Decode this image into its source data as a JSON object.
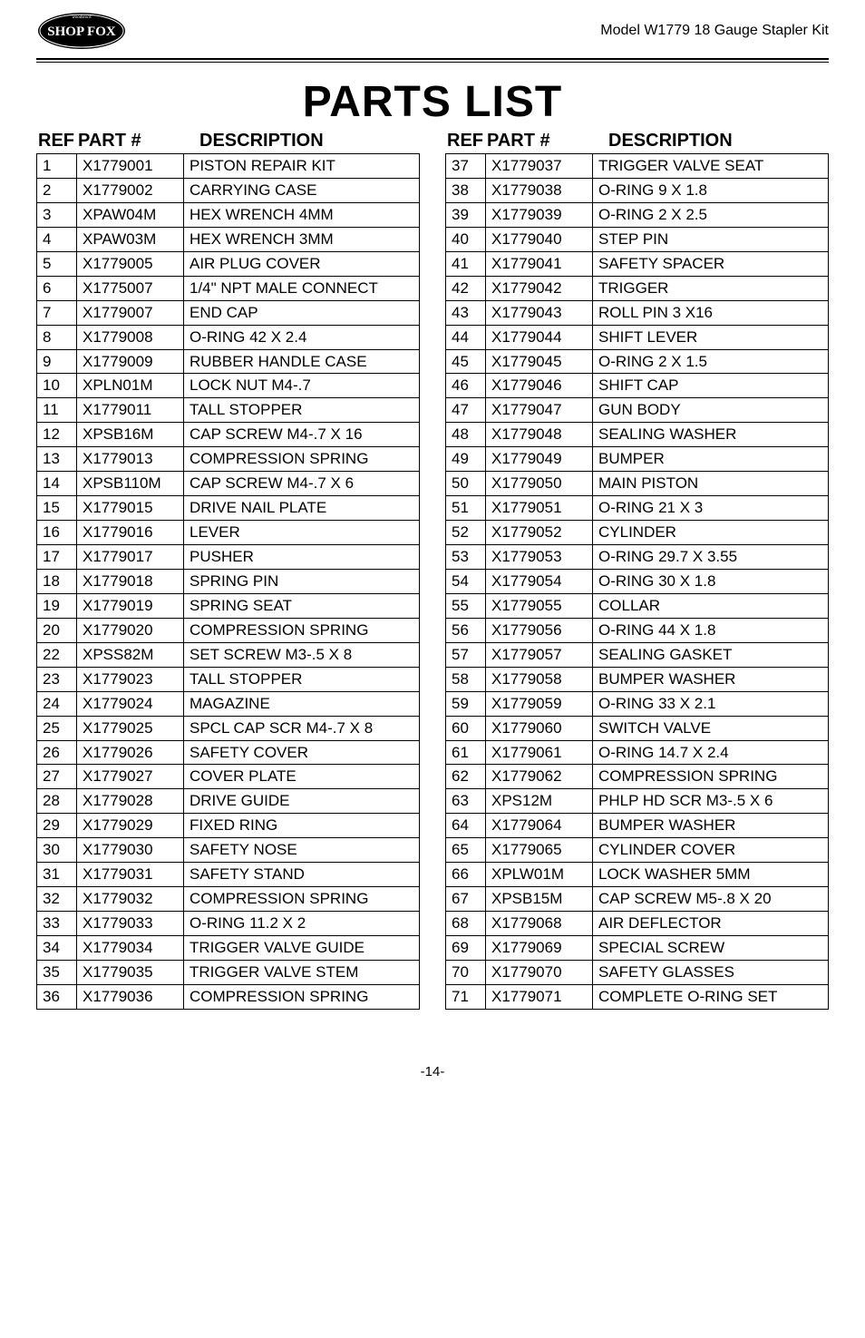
{
  "header": {
    "model_line": "Model W1779 18 Gauge Stapler Kit",
    "logo_text_top": "SHOP FOX"
  },
  "title": "PARTS LIST",
  "col_headers": {
    "ref": "REF",
    "part": "PART #",
    "desc": "DESCRIPTION"
  },
  "left_rows": [
    {
      "ref": "1",
      "part": "X1779001",
      "desc": "PISTON REPAIR KIT"
    },
    {
      "ref": "2",
      "part": "X1779002",
      "desc": "CARRYING CASE"
    },
    {
      "ref": "3",
      "part": "XPAW04M",
      "desc": "HEX WRENCH 4MM"
    },
    {
      "ref": "4",
      "part": "XPAW03M",
      "desc": "HEX WRENCH 3MM"
    },
    {
      "ref": "5",
      "part": "X1779005",
      "desc": "AIR PLUG COVER"
    },
    {
      "ref": "6",
      "part": "X1775007",
      "desc": "1/4\" NPT MALE CONNECT"
    },
    {
      "ref": "7",
      "part": "X1779007",
      "desc": "END CAP"
    },
    {
      "ref": "8",
      "part": "X1779008",
      "desc": "O-RING 42 X 2.4"
    },
    {
      "ref": "9",
      "part": "X1779009",
      "desc": "RUBBER HANDLE CASE"
    },
    {
      "ref": "10",
      "part": "XPLN01M",
      "desc": "LOCK NUT M4-.7"
    },
    {
      "ref": "11",
      "part": "X1779011",
      "desc": "TALL STOPPER"
    },
    {
      "ref": "12",
      "part": "XPSB16M",
      "desc": "CAP SCREW M4-.7 X 16"
    },
    {
      "ref": "13",
      "part": "X1779013",
      "desc": "COMPRESSION SPRING"
    },
    {
      "ref": "14",
      "part": "XPSB110M",
      "desc": "CAP SCREW M4-.7 X 6"
    },
    {
      "ref": "15",
      "part": "X1779015",
      "desc": "DRIVE NAIL PLATE"
    },
    {
      "ref": "16",
      "part": "X1779016",
      "desc": "LEVER"
    },
    {
      "ref": "17",
      "part": "X1779017",
      "desc": "PUSHER"
    },
    {
      "ref": "18",
      "part": "X1779018",
      "desc": "SPRING PIN"
    },
    {
      "ref": "19",
      "part": "X1779019",
      "desc": "SPRING SEAT"
    },
    {
      "ref": "20",
      "part": "X1779020",
      "desc": "COMPRESSION SPRING"
    },
    {
      "ref": "22",
      "part": "XPSS82M",
      "desc": "SET SCREW M3-.5 X 8"
    },
    {
      "ref": "23",
      "part": "X1779023",
      "desc": "TALL STOPPER"
    },
    {
      "ref": "24",
      "part": "X1779024",
      "desc": "MAGAZINE"
    },
    {
      "ref": "25",
      "part": "X1779025",
      "desc": "SPCL CAP SCR M4-.7 X 8"
    },
    {
      "ref": "26",
      "part": "X1779026",
      "desc": "SAFETY COVER"
    },
    {
      "ref": "27",
      "part": "X1779027",
      "desc": "COVER PLATE"
    },
    {
      "ref": "28",
      "part": "X1779028",
      "desc": "DRIVE GUIDE"
    },
    {
      "ref": "29",
      "part": "X1779029",
      "desc": "FIXED RING"
    },
    {
      "ref": "30",
      "part": "X1779030",
      "desc": "SAFETY NOSE"
    },
    {
      "ref": "31",
      "part": "X1779031",
      "desc": "SAFETY STAND"
    },
    {
      "ref": "32",
      "part": "X1779032",
      "desc": "COMPRESSION SPRING"
    },
    {
      "ref": "33",
      "part": "X1779033",
      "desc": "O-RING 11.2 X 2"
    },
    {
      "ref": "34",
      "part": "X1779034",
      "desc": "TRIGGER VALVE GUIDE"
    },
    {
      "ref": "35",
      "part": "X1779035",
      "desc": "TRIGGER VALVE STEM"
    },
    {
      "ref": "36",
      "part": "X1779036",
      "desc": "COMPRESSION SPRING"
    }
  ],
  "right_rows": [
    {
      "ref": "37",
      "part": "X1779037",
      "desc": "TRIGGER VALVE SEAT"
    },
    {
      "ref": "38",
      "part": "X1779038",
      "desc": "O-RING 9 X 1.8"
    },
    {
      "ref": "39",
      "part": "X1779039",
      "desc": "O-RING 2 X 2.5"
    },
    {
      "ref": "40",
      "part": "X1779040",
      "desc": "STEP PIN"
    },
    {
      "ref": "41",
      "part": "X1779041",
      "desc": "SAFETY SPACER"
    },
    {
      "ref": "42",
      "part": "X1779042",
      "desc": "TRIGGER"
    },
    {
      "ref": "43",
      "part": "X1779043",
      "desc": "ROLL PIN 3 X16"
    },
    {
      "ref": "44",
      "part": "X1779044",
      "desc": "SHIFT LEVER"
    },
    {
      "ref": "45",
      "part": "X1779045",
      "desc": "O-RING 2 X 1.5"
    },
    {
      "ref": "46",
      "part": "X1779046",
      "desc": "SHIFT CAP"
    },
    {
      "ref": "47",
      "part": "X1779047",
      "desc": "GUN BODY"
    },
    {
      "ref": "48",
      "part": "X1779048",
      "desc": "SEALING WASHER"
    },
    {
      "ref": "49",
      "part": "X1779049",
      "desc": "BUMPER"
    },
    {
      "ref": "50",
      "part": "X1779050",
      "desc": "MAIN PISTON"
    },
    {
      "ref": "51",
      "part": "X1779051",
      "desc": "O-RING 21 X 3"
    },
    {
      "ref": "52",
      "part": "X1779052",
      "desc": "CYLINDER"
    },
    {
      "ref": "53",
      "part": "X1779053",
      "desc": "O-RING 29.7 X 3.55"
    },
    {
      "ref": "54",
      "part": "X1779054",
      "desc": "O-RING 30 X 1.8"
    },
    {
      "ref": "55",
      "part": "X1779055",
      "desc": "COLLAR"
    },
    {
      "ref": "56",
      "part": "X1779056",
      "desc": "O-RING 44 X 1.8"
    },
    {
      "ref": "57",
      "part": "X1779057",
      "desc": "SEALING GASKET"
    },
    {
      "ref": "58",
      "part": "X1779058",
      "desc": "BUMPER WASHER"
    },
    {
      "ref": "59",
      "part": "X1779059",
      "desc": "O-RING 33 X 2.1"
    },
    {
      "ref": "60",
      "part": "X1779060",
      "desc": "SWITCH VALVE"
    },
    {
      "ref": "61",
      "part": "X1779061",
      "desc": "O-RING 14.7 X 2.4"
    },
    {
      "ref": "62",
      "part": "X1779062",
      "desc": "COMPRESSION SPRING"
    },
    {
      "ref": "63",
      "part": "XPS12M",
      "desc": "PHLP HD SCR M3-.5 X 6"
    },
    {
      "ref": "64",
      "part": "X1779064",
      "desc": "BUMPER WASHER"
    },
    {
      "ref": "65",
      "part": "X1779065",
      "desc": "CYLINDER COVER"
    },
    {
      "ref": "66",
      "part": "XPLW01M",
      "desc": "LOCK WASHER 5MM"
    },
    {
      "ref": "67",
      "part": "XPSB15M",
      "desc": "CAP SCREW M5-.8 X 20"
    },
    {
      "ref": "68",
      "part": "X1779068",
      "desc": "AIR DEFLECTOR"
    },
    {
      "ref": "69",
      "part": "X1779069",
      "desc": "SPECIAL SCREW"
    },
    {
      "ref": "70",
      "part": "X1779070",
      "desc": "SAFETY GLASSES"
    },
    {
      "ref": "71",
      "part": "X1779071",
      "desc": "COMPLETE O-RING SET"
    }
  ],
  "footer": "-14-",
  "colors": {
    "rule": "#000000",
    "text": "#000000",
    "logo_bg": "#000000",
    "logo_fg": "#ffffff"
  }
}
